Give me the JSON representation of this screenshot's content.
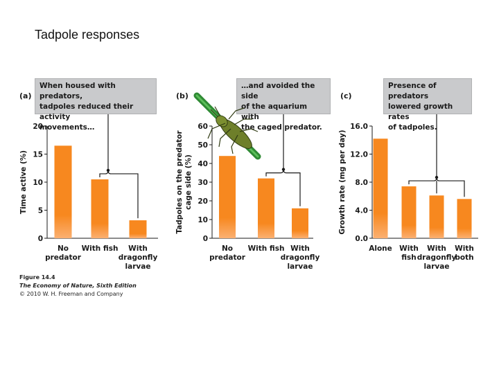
{
  "slide": {
    "title": "Tadpole responses"
  },
  "panels": [
    {
      "letter": "(a)",
      "callout": [
        "When housed with predators,",
        "tadpoles reduced their activity",
        "movements…"
      ]
    },
    {
      "letter": "(b)",
      "callout": [
        "…and avoided the side",
        "of the aquarium with",
        "the caged predator."
      ]
    },
    {
      "letter": "(c)",
      "callout": [
        "Presence of predators",
        "lowered growth rates",
        "of tadpoles."
      ]
    }
  ],
  "credits": {
    "figure": "Figure 14.4",
    "book": "The Economy of Nature, Sixth Edition",
    "copyright": "© 2010 W. H. Freeman and Company"
  },
  "colors": {
    "bar": "#f7881f",
    "bar_light": "#fbb072",
    "axis": "#1a1a1a",
    "callout_bg": "#c9cacc"
  },
  "chart_data": [
    {
      "type": "bar",
      "categories": [
        [
          "No",
          "predator"
        ],
        [
          "With fish"
        ],
        [
          "With",
          "dragonfly",
          "larvae"
        ]
      ],
      "values": [
        16.5,
        10.5,
        3.2
      ],
      "ylabel": "Time active (%)",
      "ylim": [
        0,
        20
      ],
      "yticks": [
        "0",
        "5",
        "10",
        "15",
        "20"
      ]
    },
    {
      "type": "bar",
      "categories": [
        [
          "No",
          "predator"
        ],
        [
          "With fish"
        ],
        [
          "With",
          "dragonfly",
          "larvae"
        ]
      ],
      "values": [
        44,
        32,
        16
      ],
      "ylabel": [
        "Tadpoles on the predator",
        "cage side (%)"
      ],
      "ylim": [
        0,
        60
      ],
      "yticks": [
        "0",
        "10",
        "20",
        "30",
        "40",
        "50",
        "60"
      ]
    },
    {
      "type": "bar",
      "categories": [
        [
          "Alone"
        ],
        [
          "With",
          "fish"
        ],
        [
          "With",
          "dragonfly",
          "larvae"
        ],
        [
          "With",
          "both"
        ]
      ],
      "values": [
        14.2,
        7.4,
        6.1,
        5.6
      ],
      "ylabel": "Growth rate (mg per day)",
      "ylim": [
        0,
        16
      ],
      "yticks": [
        "0.0",
        "4.0",
        "8.0",
        "12.0",
        "16.0"
      ]
    }
  ]
}
